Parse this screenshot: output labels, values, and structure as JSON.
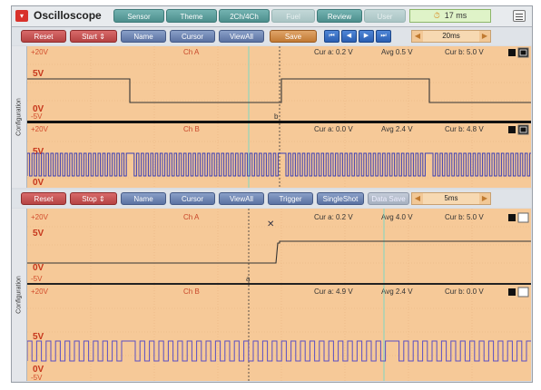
{
  "app": {
    "title": "Oscilloscope",
    "icon": "app-menu-icon"
  },
  "tabs": [
    {
      "label": "Sensor",
      "enabled": true
    },
    {
      "label": "Theme",
      "enabled": true
    },
    {
      "label": "2Ch/4Ch",
      "enabled": true
    },
    {
      "label": "Fuel",
      "enabled": false
    },
    {
      "label": "Review",
      "enabled": true
    },
    {
      "label": "User Setting",
      "enabled": false
    }
  ],
  "status": {
    "frame_time": "17 ms",
    "icon": "timer-icon"
  },
  "toolbar1": {
    "reset": "Reset",
    "start": "Start",
    "name": "Name",
    "cursor": "Cursor",
    "viewall": "ViewAll",
    "save": "Save",
    "timebase": "20ms"
  },
  "toolbar2": {
    "reset": "Reset",
    "stop": "Stop",
    "name": "Name",
    "cursor": "Cursor",
    "viewall": "ViewAll",
    "trigger": "Trigger",
    "singleshot": "SingleShot",
    "datasave": "Data Save",
    "timebase": "5ms"
  },
  "side_label": "Configuration",
  "panels": [
    {
      "ch": "Ch A",
      "top": "+20V",
      "bottom": "-5V",
      "mid": "5V",
      "zero": "0V",
      "cur_a": "Cur a: 0.2 V",
      "avg": "Avg   0.5 V",
      "cur_b": "Cur b: 5.0 V"
    },
    {
      "ch": "Ch B",
      "top": "+20V",
      "bottom": "-5V",
      "mid": "5V",
      "zero": "0V",
      "cur_a": "Cur a: 0.0 V",
      "avg": "Avg   2.4 V",
      "cur_b": "Cur b: 4.8 V"
    },
    {
      "ch": "Ch A",
      "top": "+20V",
      "bottom": "-5V",
      "mid": "5V",
      "zero": "0V",
      "cur_a": "Cur a: 0.2 V",
      "avg": "Avg   4.0 V",
      "cur_b": "Cur b: 5.0 V"
    },
    {
      "ch": "Ch B",
      "top": "+20V",
      "bottom": "-5V",
      "mid": "5V",
      "zero": "0V",
      "cur_a": "Cur a: 4.9 V",
      "avg": "Avg   2.4 V",
      "cur_b": "Cur b: 0.0 V"
    }
  ]
}
